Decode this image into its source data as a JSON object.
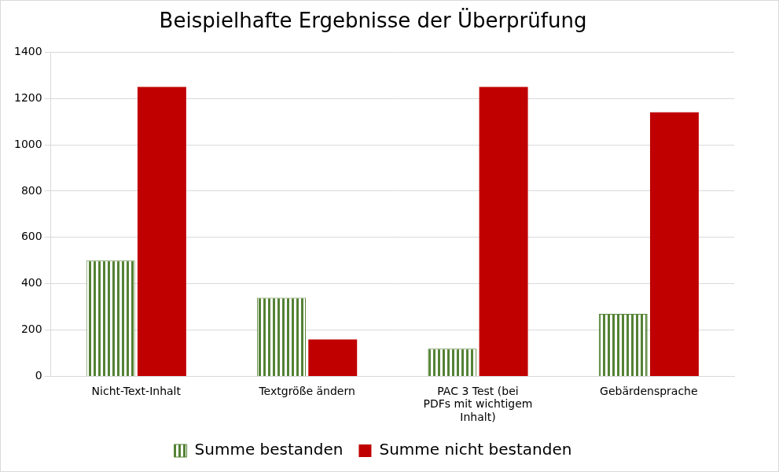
{
  "chart_data": {
    "type": "bar",
    "title": "Beispielhafte Ergebnisse der Überprüfung",
    "categories": [
      "Nicht-Text-Inhalt",
      "Textgröße ändern",
      "PAC 3 Test (bei PDFs mit wichtigem Inhalt)",
      "Gebärdensprache"
    ],
    "series": [
      {
        "name": "Summe bestanden",
        "color": "#548235",
        "values": [
          500,
          340,
          120,
          270
        ]
      },
      {
        "name": "Summe nicht bestanden",
        "color": "#c00000",
        "values": [
          1250,
          160,
          1250,
          1140
        ]
      }
    ],
    "ylim": [
      0,
      1400
    ],
    "yticks": [
      0,
      200,
      400,
      600,
      800,
      1000,
      1200,
      1400
    ],
    "grid": true,
    "legend": "bottom"
  }
}
